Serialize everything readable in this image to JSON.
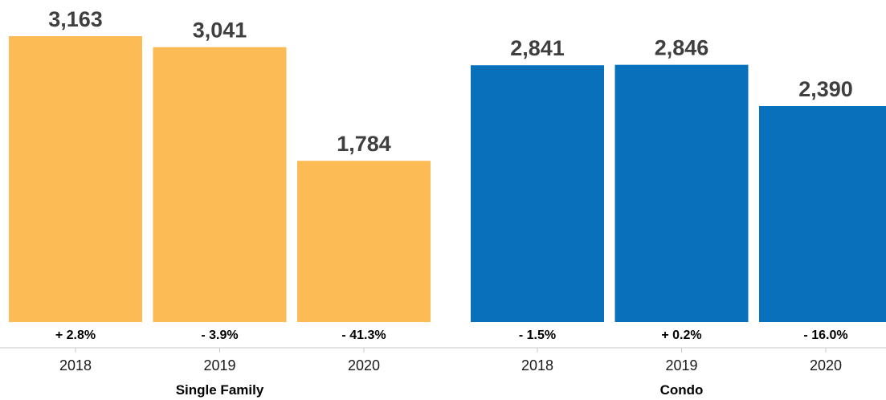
{
  "chart_data": {
    "type": "bar",
    "groups": [
      {
        "name": "Single Family",
        "color": "#fcbb55",
        "bars": [
          {
            "category": "2018",
            "value": 3163,
            "value_label": "3,163",
            "change": "+ 2.8%"
          },
          {
            "category": "2019",
            "value": 3041,
            "value_label": "3,041",
            "change": "- 3.9%"
          },
          {
            "category": "2020",
            "value": 1784,
            "value_label": "1,784",
            "change": "- 41.3%"
          }
        ]
      },
      {
        "name": "Condo",
        "color": "#0771bc",
        "bars": [
          {
            "category": "2018",
            "value": 2841,
            "value_label": "2,841",
            "change": "- 1.5%"
          },
          {
            "category": "2019",
            "value": 2846,
            "value_label": "2,846",
            "change": "+ 0.2%"
          },
          {
            "category": "2020",
            "value": 2390,
            "value_label": "2,390",
            "change": "- 16.0%"
          }
        ]
      }
    ],
    "title": "",
    "xlabel": "",
    "ylabel": "",
    "ylim": [
      0,
      3163
    ],
    "grid": false,
    "legend": "none"
  }
}
